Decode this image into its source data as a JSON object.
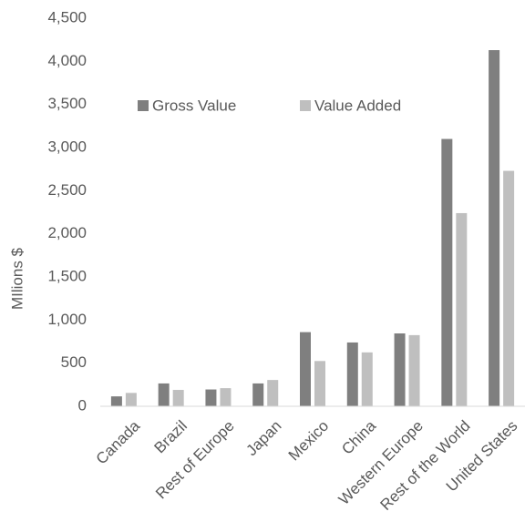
{
  "chart_data": {
    "type": "bar",
    "title": "",
    "xlabel": "",
    "ylabel": "MIlions $",
    "ylim": [
      0,
      4500
    ],
    "yticks": [
      0,
      500,
      1000,
      1500,
      2000,
      2500,
      3000,
      3500,
      4000,
      4500
    ],
    "ytick_labels": [
      "0",
      "500",
      "1,000",
      "1,500",
      "2,000",
      "2,500",
      "3,000",
      "3,500",
      "4,000",
      "4,500"
    ],
    "grid": false,
    "legend_position": "top-left",
    "categories": [
      "Canada",
      "Brazil",
      "Rest of Europe",
      "Japan",
      "Mexico",
      "China",
      "Western Europe",
      "Rest of the World",
      "United States"
    ],
    "series": [
      {
        "name": "Gross Value",
        "color": "#7f7f7f",
        "values": [
          115,
          265,
          195,
          265,
          860,
          740,
          845,
          3100,
          4130
        ]
      },
      {
        "name": "Value Added",
        "color": "#bfbfbf",
        "values": [
          155,
          190,
          210,
          305,
          525,
          625,
          825,
          2240,
          2730
        ]
      }
    ],
    "axis_color": "#d9d9d9",
    "text_color": "#595959"
  }
}
